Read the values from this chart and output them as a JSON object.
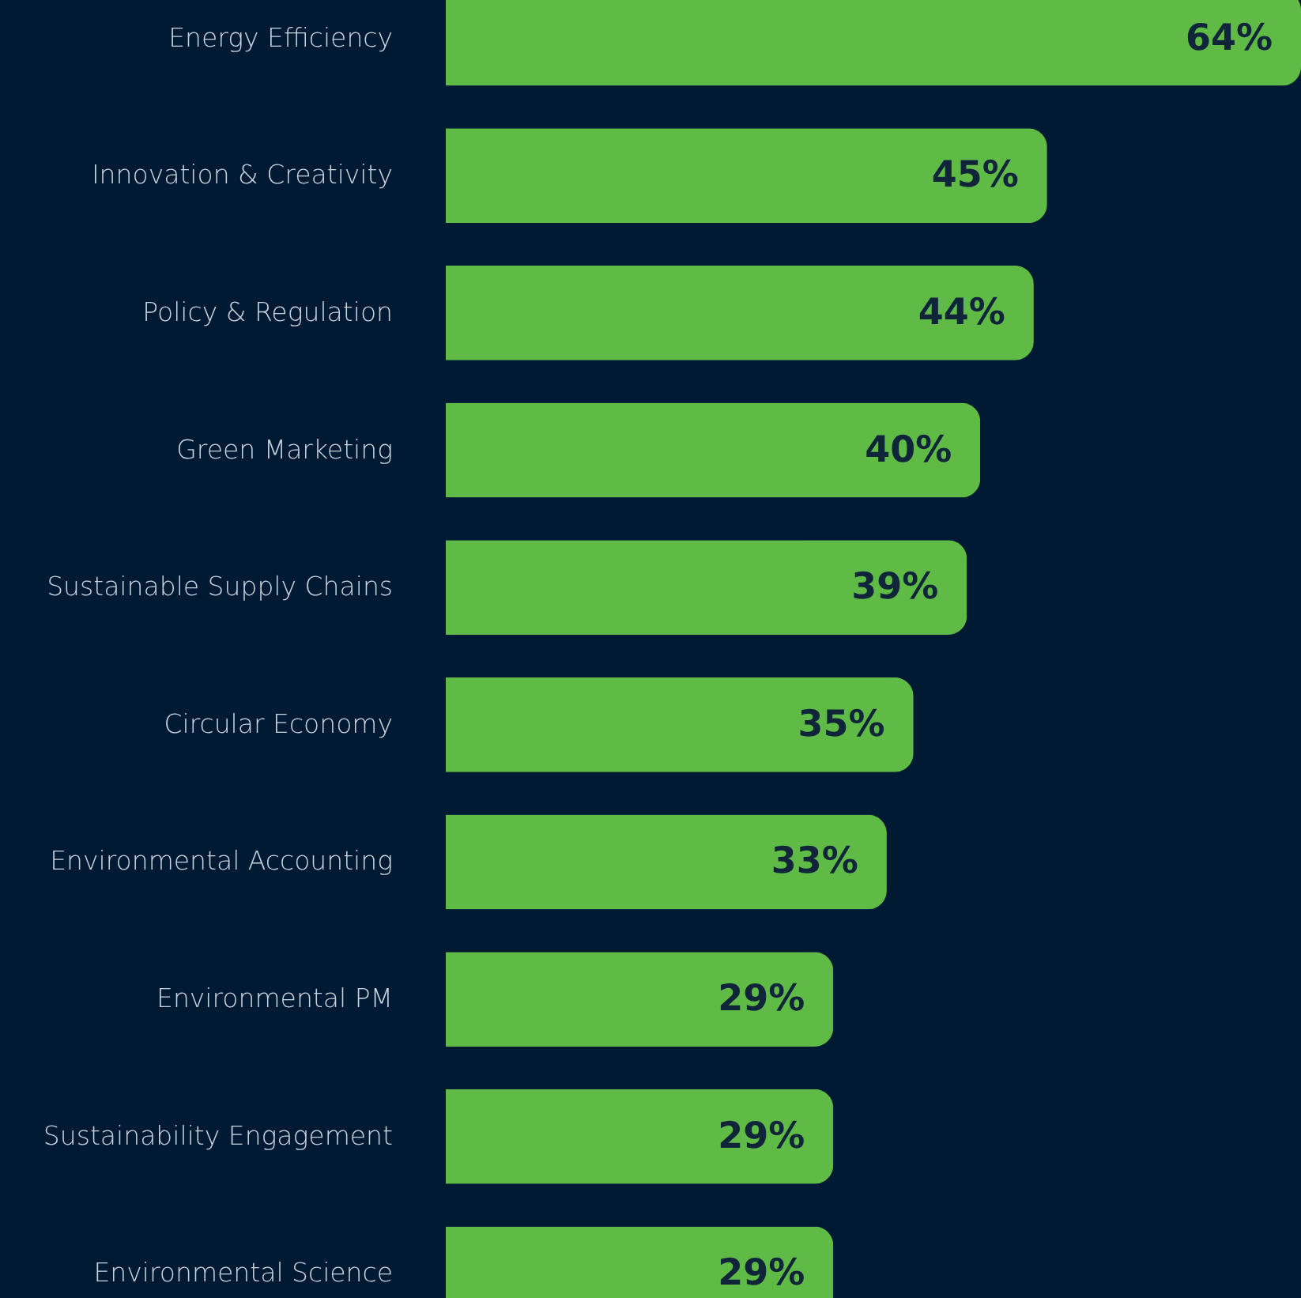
{
  "chart_data": {
    "type": "bar",
    "orientation": "horizontal",
    "categories": [
      "Energy Efficiency",
      "Innovation & Creativity",
      "Policy & Regulation",
      "Green Marketing",
      "Sustainable Supply Chains",
      "Circular Economy",
      "Environmental Accounting",
      "Environmental PM",
      "Sustainability Engagement",
      "Environmental Science"
    ],
    "values": [
      64,
      45,
      44,
      40,
      39,
      35,
      33,
      29,
      29,
      29
    ],
    "value_labels": [
      "64%",
      "45%",
      "44%",
      "40%",
      "39%",
      "35%",
      "33%",
      "29%",
      "29%",
      "29%"
    ],
    "color": "#5fbb46"
  }
}
